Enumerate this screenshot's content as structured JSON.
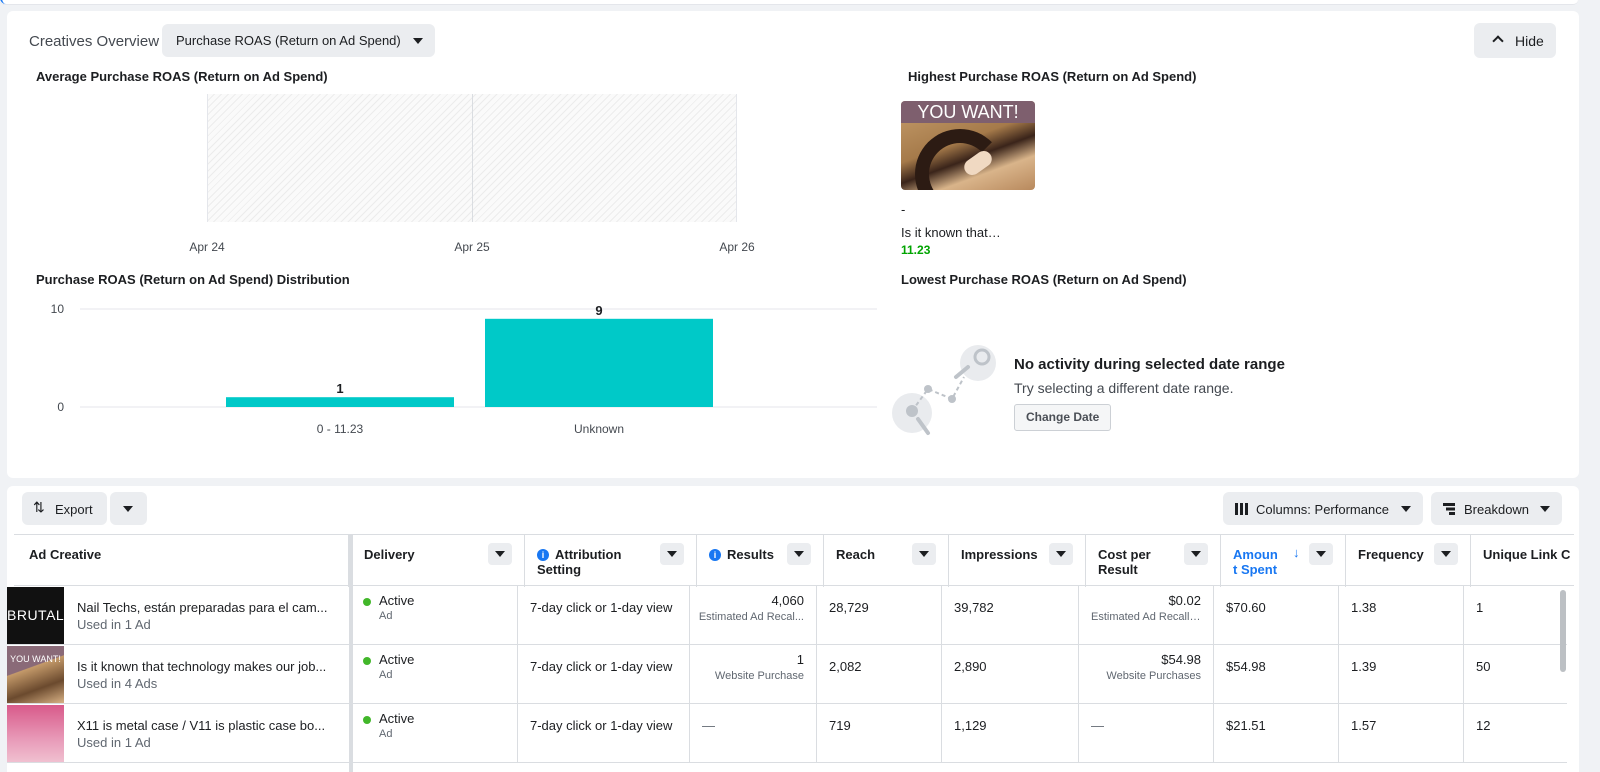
{
  "overview": {
    "title": "Creatives Overview",
    "metric_select": "Purchase ROAS (Return on Ad Spend)",
    "hide_label": "Hide"
  },
  "average": {
    "title": "Average Purchase ROAS (Return on Ad Spend)",
    "x_ticks": [
      "Apr 24",
      "Apr 25",
      "Apr 26"
    ]
  },
  "highest": {
    "title": "Highest Purchase ROAS (Return on Ad Spend)",
    "thumb_text": "YOU WANT!",
    "dash": "-",
    "name": "Is it known that…",
    "value": "11.23"
  },
  "lowest": {
    "title": "Lowest Purchase ROAS (Return on Ad Spend)",
    "empty_title": "No activity during selected date range",
    "empty_sub": "Try selecting a different date range.",
    "change_date": "Change Date"
  },
  "distribution": {
    "title": "Purchase ROAS (Return on Ad Spend) Distribution"
  },
  "chart_data": {
    "type": "bar",
    "title": "Purchase ROAS (Return on Ad Spend) Distribution",
    "categories": [
      "0 - 11.23",
      "Unknown"
    ],
    "values": [
      1,
      9
    ],
    "ylim": [
      0,
      10
    ],
    "y_ticks": [
      0,
      10
    ],
    "color": "#00c9c8",
    "grid": true
  },
  "toolbar": {
    "export": "Export",
    "columns": "Columns: Performance",
    "breakdown": "Breakdown"
  },
  "table": {
    "headers": {
      "creative": "Ad Creative",
      "delivery": "Delivery",
      "attribution": "Attribution Setting",
      "results": "Results",
      "reach": "Reach",
      "impressions": "Impressions",
      "cost": "Cost per Result",
      "amount": "Amount Spent",
      "frequency": "Frequency",
      "unique": "Unique Link C"
    },
    "rows": [
      {
        "thumb": "BRUTAL",
        "name": "Nail Techs, están preparadas para el cam...",
        "used": "Used in 1 Ad",
        "delivery": "Active",
        "delivery_sub": "Ad",
        "attribution": "7-day click or 1-day view",
        "results": "4,060",
        "results_sub": "Estimated Ad Recal...",
        "reach": "28,729",
        "impressions": "39,782",
        "cost": "$0.02",
        "cost_sub": "Estimated Ad Recall ...",
        "amount": "$70.60",
        "frequency": "1.38",
        "unique": "1"
      },
      {
        "thumb": "YOU WANT!",
        "name": "Is it known that technology makes our job...",
        "used": "Used in 4 Ads",
        "delivery": "Active",
        "delivery_sub": "Ad",
        "attribution": "7-day click or 1-day view",
        "results": "1",
        "results_sub": "Website Purchase",
        "reach": "2,082",
        "impressions": "2,890",
        "cost": "$54.98",
        "cost_sub": "Website Purchases",
        "amount": "$54.98",
        "frequency": "1.39",
        "unique": "50"
      },
      {
        "thumb": "",
        "name": "X11 is metal case / V11 is plastic case bo...",
        "used": "Used in 1 Ad",
        "delivery": "Active",
        "delivery_sub": "Ad",
        "attribution": "7-day click or 1-day view",
        "results": "—",
        "results_sub": "",
        "reach": "719",
        "impressions": "1,129",
        "cost": "—",
        "cost_sub": "",
        "amount": "$21.51",
        "frequency": "1.57",
        "unique": "12"
      }
    ]
  }
}
